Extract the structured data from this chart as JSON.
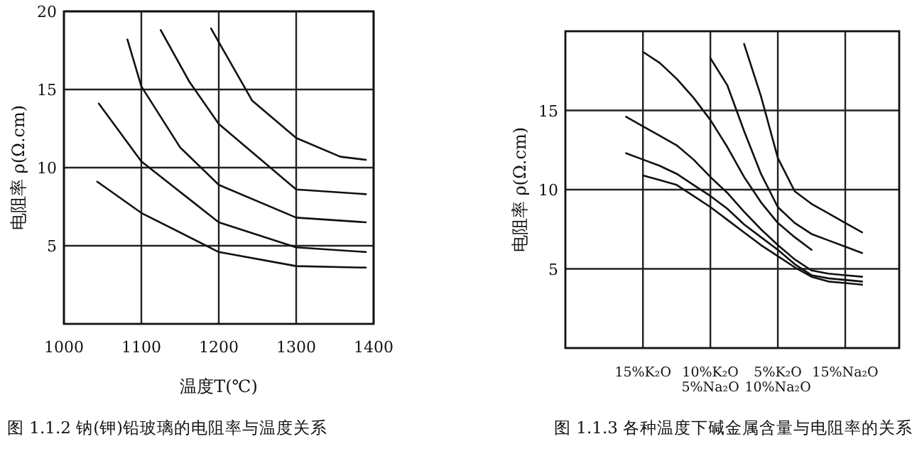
{
  "chart_data": [
    {
      "type": "line",
      "title": "图 1.1.2  钠(钾)铅玻璃的电阻率与温度关系",
      "xlabel": "温度T(℃)",
      "ylabel": "电阻率 ρ(Ω.cm)",
      "xlim": [
        1000,
        1400
      ],
      "ylim": [
        0,
        20
      ],
      "xticks": [
        1000,
        1100,
        1200,
        1300,
        1400
      ],
      "yticks": [
        5,
        10,
        15,
        20
      ],
      "grid": true,
      "marker": "none",
      "line_style": "solid",
      "series": [
        {
          "color": "#111111",
          "x": [
            1043,
            1100,
            1200,
            1300,
            1390
          ],
          "values": [
            9.1,
            7.1,
            4.6,
            3.7,
            3.6
          ]
        },
        {
          "color": "#111111",
          "x": [
            1045,
            1100,
            1200,
            1300,
            1390
          ],
          "values": [
            14.1,
            10.4,
            6.5,
            4.9,
            4.6
          ]
        },
        {
          "color": "#111111",
          "x": [
            1082,
            1100,
            1150,
            1200,
            1300,
            1390
          ],
          "values": [
            18.2,
            15.2,
            11.3,
            8.9,
            6.8,
            6.5
          ]
        },
        {
          "color": "#111111",
          "x": [
            1125,
            1162,
            1200,
            1300,
            1390
          ],
          "values": [
            18.8,
            15.5,
            12.8,
            8.6,
            8.3
          ]
        },
        {
          "color": "#111111",
          "x": [
            1190,
            1243,
            1300,
            1357,
            1390
          ],
          "values": [
            18.9,
            14.3,
            11.9,
            10.7,
            10.5
          ]
        }
      ]
    },
    {
      "type": "line",
      "title": "图 1.1.3  各种温度下碱金属含量与电阻率的关系",
      "ylabel": "电阻率 ρ(Ω.cm)",
      "categories": [
        null,
        "15%K₂O",
        null,
        null,
        null,
        "10%K₂O\n5%Na₂O",
        null,
        null,
        null,
        "5%K₂O\n10%Na₂O",
        null,
        null,
        null,
        "15%Na₂O",
        null
      ],
      "ylim": [
        0,
        20
      ],
      "yticks": [
        5,
        10,
        15
      ],
      "grid": true,
      "marker": "none",
      "line_style": "solid",
      "series": [
        {
          "color": "#111111",
          "values": [
            null,
            null,
            null,
            null,
            null,
            null,
            null,
            19.2,
            15.9,
            12.0,
            9.9,
            9.1,
            8.5,
            7.9,
            7.3
          ]
        },
        {
          "color": "#111111",
          "values": [
            null,
            null,
            null,
            null,
            null,
            18.3,
            16.6,
            13.7,
            11.0,
            8.9,
            7.9,
            7.2,
            6.8,
            6.4,
            6.0
          ]
        },
        {
          "color": "#111111",
          "values": [
            null,
            18.7,
            18.0,
            17.0,
            15.8,
            14.4,
            12.7,
            10.8,
            9.2,
            7.9,
            7.0,
            6.2,
            null,
            null,
            null
          ]
        },
        {
          "color": "#111111",
          "values": [
            14.6,
            14.0,
            13.4,
            12.8,
            11.9,
            10.8,
            9.8,
            8.6,
            7.5,
            6.5,
            5.6,
            4.9,
            4.7,
            4.6,
            4.5
          ]
        },
        {
          "color": "#111111",
          "values": [
            12.3,
            11.9,
            11.5,
            11.0,
            10.3,
            9.6,
            8.8,
            7.8,
            7.0,
            6.2,
            5.3,
            4.6,
            4.4,
            4.3,
            4.2
          ]
        },
        {
          "color": "#111111",
          "values": [
            null,
            10.9,
            10.6,
            10.3,
            9.6,
            8.9,
            8.1,
            7.3,
            6.5,
            5.8,
            5.1,
            4.5,
            4.2,
            4.1,
            4.0
          ]
        }
      ]
    }
  ]
}
